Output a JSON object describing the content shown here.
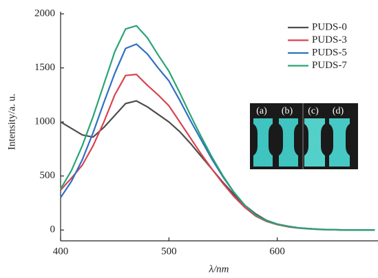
{
  "chart_data": {
    "type": "line",
    "x_label": "λ/nm",
    "y_label": "Intensity/a. u.",
    "x": [
      400,
      410,
      420,
      430,
      440,
      450,
      460,
      470,
      480,
      490,
      500,
      510,
      520,
      530,
      540,
      550,
      560,
      570,
      580,
      590,
      600,
      610,
      620,
      630,
      640,
      650,
      660,
      670,
      680,
      690
    ],
    "series": [
      {
        "name": "PUDS-0",
        "color": "#4d4d4d",
        "values": [
          1000,
          940,
          880,
          860,
          950,
          1060,
          1170,
          1195,
          1140,
          1070,
          1000,
          910,
          800,
          680,
          560,
          440,
          330,
          230,
          150,
          90,
          55,
          35,
          20,
          12,
          6,
          3,
          1,
          0,
          0,
          0
        ]
      },
      {
        "name": "PUDS-3",
        "color": "#d9434f",
        "values": [
          370,
          480,
          600,
          780,
          1000,
          1250,
          1430,
          1440,
          1340,
          1250,
          1150,
          1000,
          850,
          700,
          560,
          430,
          310,
          210,
          130,
          80,
          50,
          30,
          18,
          10,
          5,
          3,
          1,
          0,
          0,
          0
        ]
      },
      {
        "name": "PUDS-5",
        "color": "#2f6fc4",
        "values": [
          300,
          450,
          650,
          900,
          1180,
          1450,
          1680,
          1720,
          1630,
          1500,
          1380,
          1200,
          1010,
          830,
          650,
          490,
          350,
          230,
          140,
          85,
          55,
          35,
          20,
          12,
          6,
          3,
          1,
          0,
          0,
          0
        ]
      },
      {
        "name": "PUDS-7",
        "color": "#2aa374",
        "values": [
          380,
          550,
          780,
          1050,
          1350,
          1650,
          1860,
          1890,
          1780,
          1620,
          1470,
          1270,
          1060,
          860,
          670,
          500,
          350,
          230,
          140,
          85,
          55,
          35,
          20,
          12,
          6,
          3,
          1,
          0,
          0,
          0
        ]
      }
    ],
    "xlim": [
      400,
      693
    ],
    "ylim": [
      -100,
      2020
    ],
    "xticks": [
      400,
      500,
      600
    ],
    "yticks": [
      0,
      500,
      1000,
      1500,
      2000
    ],
    "legend": "upper right",
    "inset_labels": [
      "(a)",
      "(b)",
      "(c)",
      "(d)"
    ]
  }
}
